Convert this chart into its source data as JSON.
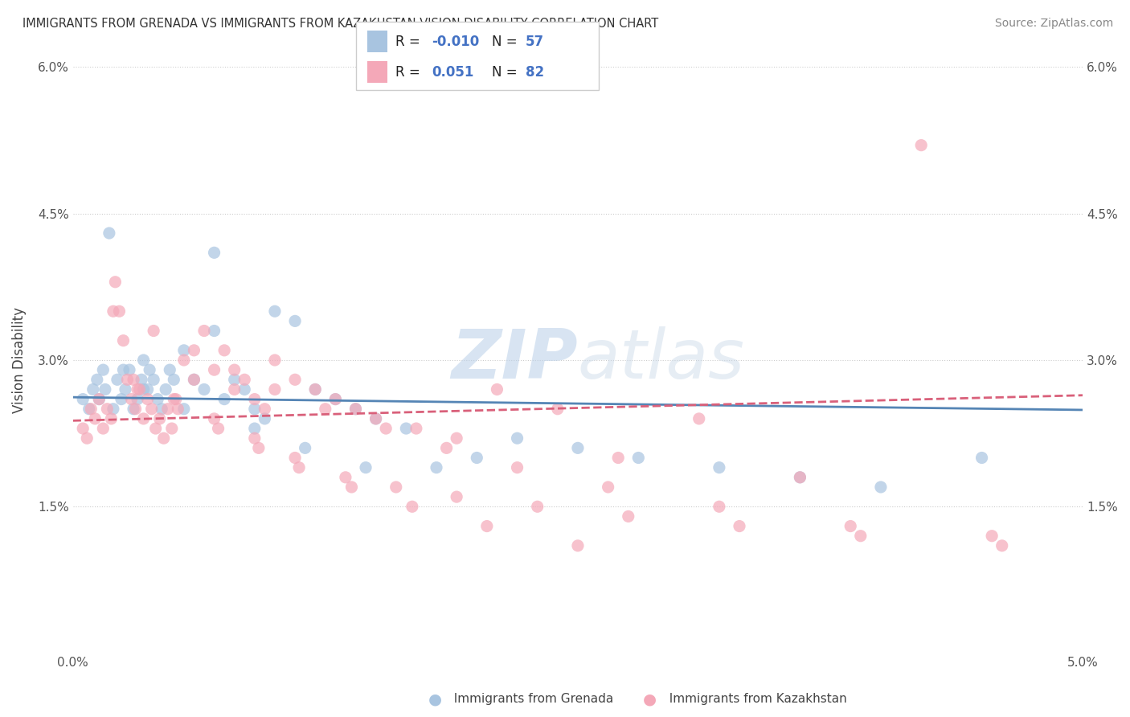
{
  "title": "IMMIGRANTS FROM GRENADA VS IMMIGRANTS FROM KAZAKHSTAN VISION DISABILITY CORRELATION CHART",
  "source": "Source: ZipAtlas.com",
  "ylabel": "Vision Disability",
  "xlim": [
    0.0,
    5.0
  ],
  "ylim": [
    0.0,
    6.0
  ],
  "legend_R1": "-0.010",
  "legend_N1": "57",
  "legend_R2": "0.051",
  "legend_N2": "82",
  "color_grenada": "#a8c4e0",
  "color_kazakhstan": "#f4a8b8",
  "color_blue_text": "#4472c4",
  "trend_color_grenada": "#5585b5",
  "trend_color_kazakhstan": "#d9607a",
  "watermark_color": "#d0dff0",
  "grenada_x": [
    0.05,
    0.08,
    0.1,
    0.12,
    0.13,
    0.15,
    0.16,
    0.18,
    0.2,
    0.22,
    0.24,
    0.26,
    0.28,
    0.3,
    0.32,
    0.34,
    0.35,
    0.37,
    0.38,
    0.4,
    0.42,
    0.44,
    0.46,
    0.48,
    0.5,
    0.55,
    0.6,
    0.65,
    0.7,
    0.75,
    0.8,
    0.85,
    0.9,
    0.95,
    1.0,
    1.1,
    1.2,
    1.3,
    1.4,
    1.5,
    1.65,
    1.8,
    2.0,
    2.2,
    2.5,
    2.8,
    3.2,
    3.6,
    4.0,
    4.5,
    0.25,
    0.35,
    0.55,
    0.7,
    0.9,
    1.15,
    1.45
  ],
  "grenada_y": [
    2.6,
    2.5,
    2.7,
    2.8,
    2.6,
    2.9,
    2.7,
    4.3,
    2.5,
    2.8,
    2.6,
    2.7,
    2.9,
    2.5,
    2.6,
    2.8,
    3.0,
    2.7,
    2.9,
    2.8,
    2.6,
    2.5,
    2.7,
    2.9,
    2.8,
    3.1,
    2.8,
    2.7,
    3.3,
    2.6,
    2.8,
    2.7,
    2.5,
    2.4,
    3.5,
    3.4,
    2.7,
    2.6,
    2.5,
    2.4,
    2.3,
    1.9,
    2.0,
    2.2,
    2.1,
    2.0,
    1.9,
    1.8,
    1.7,
    2.0,
    2.9,
    2.7,
    2.5,
    4.1,
    2.3,
    2.1,
    1.9
  ],
  "kazakhstan_x": [
    0.05,
    0.07,
    0.09,
    0.11,
    0.13,
    0.15,
    0.17,
    0.19,
    0.21,
    0.23,
    0.25,
    0.27,
    0.29,
    0.31,
    0.33,
    0.35,
    0.37,
    0.39,
    0.41,
    0.43,
    0.45,
    0.47,
    0.49,
    0.51,
    0.55,
    0.6,
    0.65,
    0.7,
    0.75,
    0.8,
    0.85,
    0.9,
    0.95,
    1.0,
    1.1,
    1.2,
    1.3,
    1.4,
    1.5,
    1.7,
    1.9,
    2.1,
    2.4,
    2.7,
    3.1,
    3.6,
    4.2,
    0.3,
    0.5,
    0.7,
    0.9,
    1.1,
    1.35,
    1.6,
    1.9,
    2.3,
    2.75,
    3.3,
    3.9,
    4.6,
    0.2,
    0.4,
    0.6,
    0.8,
    1.0,
    1.25,
    1.55,
    1.85,
    2.2,
    2.65,
    3.2,
    3.85,
    4.55,
    0.32,
    0.52,
    0.72,
    0.92,
    1.12,
    1.38,
    1.68,
    2.05,
    2.5
  ],
  "kazakhstan_y": [
    2.3,
    2.2,
    2.5,
    2.4,
    2.6,
    2.3,
    2.5,
    2.4,
    3.8,
    3.5,
    3.2,
    2.8,
    2.6,
    2.5,
    2.7,
    2.4,
    2.6,
    2.5,
    2.3,
    2.4,
    2.2,
    2.5,
    2.3,
    2.6,
    3.0,
    2.8,
    3.3,
    2.9,
    3.1,
    2.7,
    2.8,
    2.6,
    2.5,
    3.0,
    2.8,
    2.7,
    2.6,
    2.5,
    2.4,
    2.3,
    2.2,
    2.7,
    2.5,
    2.0,
    2.4,
    1.8,
    5.2,
    2.8,
    2.6,
    2.4,
    2.2,
    2.0,
    1.8,
    1.7,
    1.6,
    1.5,
    1.4,
    1.3,
    1.2,
    1.1,
    3.5,
    3.3,
    3.1,
    2.9,
    2.7,
    2.5,
    2.3,
    2.1,
    1.9,
    1.7,
    1.5,
    1.3,
    1.2,
    2.7,
    2.5,
    2.3,
    2.1,
    1.9,
    1.7,
    1.5,
    1.3,
    1.1
  ],
  "trend_grenada_x0": 0.0,
  "trend_grenada_y0": 2.62,
  "trend_grenada_x1": 5.0,
  "trend_grenada_y1": 2.49,
  "trend_kazakhstan_x0": 0.0,
  "trend_kazakhstan_y0": 2.38,
  "trend_kazakhstan_x1": 5.0,
  "trend_kazakhstan_y1": 2.64
}
